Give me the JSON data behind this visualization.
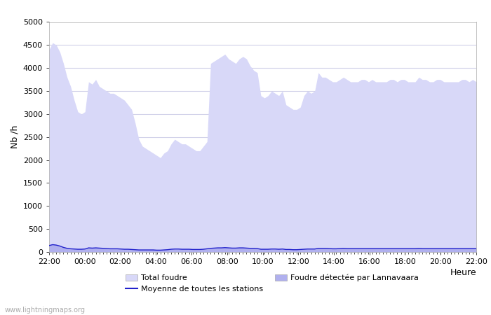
{
  "xlabel": "Heure",
  "ylabel": "Nb /h",
  "ylim": [
    0,
    5000
  ],
  "yticks": [
    0,
    500,
    1000,
    1500,
    2000,
    2500,
    3000,
    3500,
    4000,
    4500,
    5000
  ],
  "xtick_labels": [
    "22:00",
    "00:00",
    "02:00",
    "04:00",
    "06:00",
    "08:00",
    "10:00",
    "12:00",
    "14:00",
    "16:00",
    "18:00",
    "20:00",
    "22:00"
  ],
  "background_color": "#ffffff",
  "plot_bg_color": "#ffffff",
  "grid_color": "#d0d0e8",
  "watermark": "www.lightningmaps.org",
  "total_foudre_color": "#d8d8f8",
  "lannavaara_color": "#b0b0ee",
  "moyenne_color": "#2222cc",
  "total_foudre_values": [
    4400,
    4550,
    4500,
    4350,
    4100,
    3800,
    3600,
    3300,
    3050,
    3000,
    3050,
    3700,
    3650,
    3750,
    3600,
    3550,
    3500,
    3450,
    3450,
    3400,
    3350,
    3300,
    3200,
    3100,
    2800,
    2450,
    2300,
    2250,
    2200,
    2150,
    2100,
    2050,
    2150,
    2200,
    2350,
    2450,
    2400,
    2350,
    2350,
    2300,
    2250,
    2200,
    2200,
    2300,
    2400,
    4100,
    4150,
    4200,
    4250,
    4300,
    4200,
    4150,
    4100,
    4200,
    4250,
    4200,
    4050,
    3950,
    3900,
    3400,
    3350,
    3400,
    3500,
    3450,
    3400,
    3500,
    3200,
    3150,
    3100,
    3100,
    3150,
    3400,
    3500,
    3450,
    3500,
    3900,
    3800,
    3800,
    3750,
    3700,
    3700,
    3750,
    3800,
    3750,
    3700,
    3700,
    3700,
    3750,
    3750,
    3700,
    3750,
    3700,
    3700,
    3700,
    3700,
    3750,
    3750,
    3700,
    3750,
    3750,
    3700,
    3700,
    3700,
    3800,
    3750,
    3750,
    3700,
    3700,
    3750,
    3750,
    3700,
    3700,
    3700,
    3700,
    3700,
    3750,
    3750,
    3700,
    3750,
    3700
  ],
  "lannavaara_values": [
    150,
    170,
    160,
    140,
    110,
    90,
    80,
    75,
    70,
    70,
    75,
    100,
    95,
    100,
    95,
    90,
    85,
    80,
    80,
    80,
    75,
    70,
    70,
    65,
    60,
    55,
    55,
    55,
    55,
    55,
    50,
    50,
    55,
    60,
    70,
    75,
    75,
    70,
    70,
    70,
    65,
    65,
    65,
    70,
    80,
    90,
    95,
    100,
    100,
    105,
    100,
    95,
    95,
    100,
    100,
    95,
    90,
    90,
    85,
    70,
    70,
    70,
    75,
    75,
    70,
    75,
    65,
    65,
    60,
    60,
    65,
    70,
    75,
    75,
    75,
    90,
    90,
    90,
    85,
    80,
    80,
    85,
    90,
    85,
    85,
    85,
    85,
    85,
    85,
    85,
    85,
    85,
    85,
    85,
    85,
    85,
    85,
    85,
    85,
    85,
    85,
    85,
    85,
    90,
    85,
    85,
    85,
    85,
    85,
    85,
    85,
    85,
    85,
    85,
    85,
    85,
    85,
    85,
    85,
    85
  ],
  "moyenne_values": [
    140,
    160,
    150,
    130,
    100,
    80,
    70,
    65,
    60,
    60,
    65,
    90,
    85,
    90,
    85,
    80,
    75,
    70,
    70,
    70,
    65,
    60,
    60,
    55,
    50,
    45,
    45,
    45,
    45,
    45,
    40,
    40,
    45,
    50,
    60,
    65,
    65,
    60,
    60,
    60,
    55,
    55,
    55,
    60,
    70,
    80,
    85,
    90,
    90,
    95,
    90,
    85,
    85,
    90,
    90,
    85,
    80,
    80,
    75,
    60,
    60,
    60,
    65,
    65,
    60,
    65,
    55,
    55,
    50,
    50,
    55,
    60,
    65,
    65,
    65,
    80,
    80,
    80,
    75,
    70,
    70,
    75,
    80,
    75,
    75,
    75,
    75,
    75,
    75,
    75,
    75,
    75,
    75,
    75,
    75,
    75,
    75,
    75,
    75,
    75,
    75,
    75,
    75,
    80,
    75,
    75,
    75,
    75,
    75,
    75,
    75,
    75,
    75,
    75,
    75,
    75,
    75,
    75,
    75,
    75
  ],
  "n_points": 120
}
